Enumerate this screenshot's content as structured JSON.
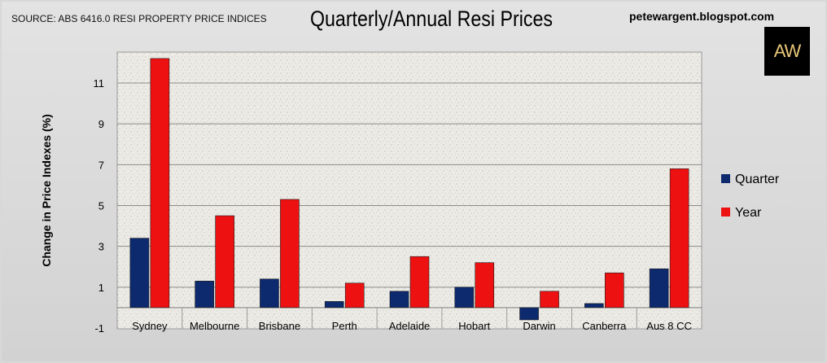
{
  "header": {
    "source": "SOURCE: ABS 6416.0 RESI PROPERTY PRICE INDICES",
    "title": "Quarterly/Annual Resi Prices",
    "blog": "petewargent.blogspot.com",
    "logo_text": "AW"
  },
  "chart_data": {
    "type": "bar",
    "title": "Quarterly/Annual Resi Prices",
    "xlabel": "",
    "ylabel": "Change in Price Indexes (%)",
    "categories": [
      "Sydney",
      "Melbourne",
      "Brisbane",
      "Perth",
      "Adelaide",
      "Hobart",
      "Darwin",
      "Canberra",
      "Aus 8 CC"
    ],
    "series": [
      {
        "name": "Quarter",
        "color": "#0d2a6e",
        "values": [
          3.4,
          1.3,
          1.4,
          0.3,
          0.8,
          1.0,
          -0.6,
          0.2,
          1.9
        ]
      },
      {
        "name": "Year",
        "color": "#ee1111",
        "values": [
          12.2,
          4.5,
          5.3,
          1.2,
          2.5,
          2.2,
          0.8,
          1.7,
          6.8
        ]
      }
    ],
    "ylim": [
      -1,
      13
    ],
    "yticks": [
      -1,
      1,
      3,
      5,
      7,
      9,
      11
    ],
    "grid": true,
    "legend_position": "right"
  }
}
